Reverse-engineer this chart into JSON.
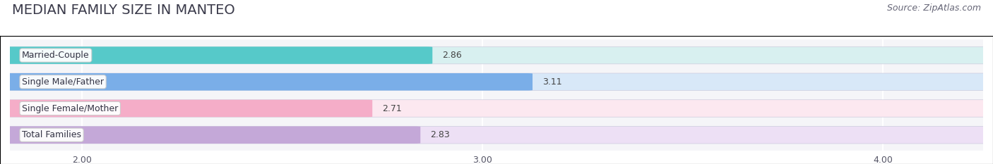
{
  "title": "MEDIAN FAMILY SIZE IN MANTEO",
  "source": "Source: ZipAtlas.com",
  "categories": [
    "Married-Couple",
    "Single Male/Father",
    "Single Female/Mother",
    "Total Families"
  ],
  "values": [
    2.86,
    3.11,
    2.71,
    2.83
  ],
  "bar_colors": [
    "#56c9c9",
    "#7aaee8",
    "#f5adc8",
    "#c4a8d8"
  ],
  "bar_bg_colors": [
    "#d8f0f0",
    "#d8e8f8",
    "#fce8f0",
    "#ede0f5"
  ],
  "xlim_left": 1.82,
  "xlim_right": 4.25,
  "xticks": [
    2.0,
    3.0,
    4.0
  ],
  "xtick_labels": [
    "2.00",
    "3.00",
    "4.00"
  ],
  "background_color": "#ffffff",
  "plot_bg_color": "#f5f5f8",
  "title_fontsize": 14,
  "label_fontsize": 9,
  "value_fontsize": 9,
  "source_fontsize": 9,
  "bar_height": 0.62
}
